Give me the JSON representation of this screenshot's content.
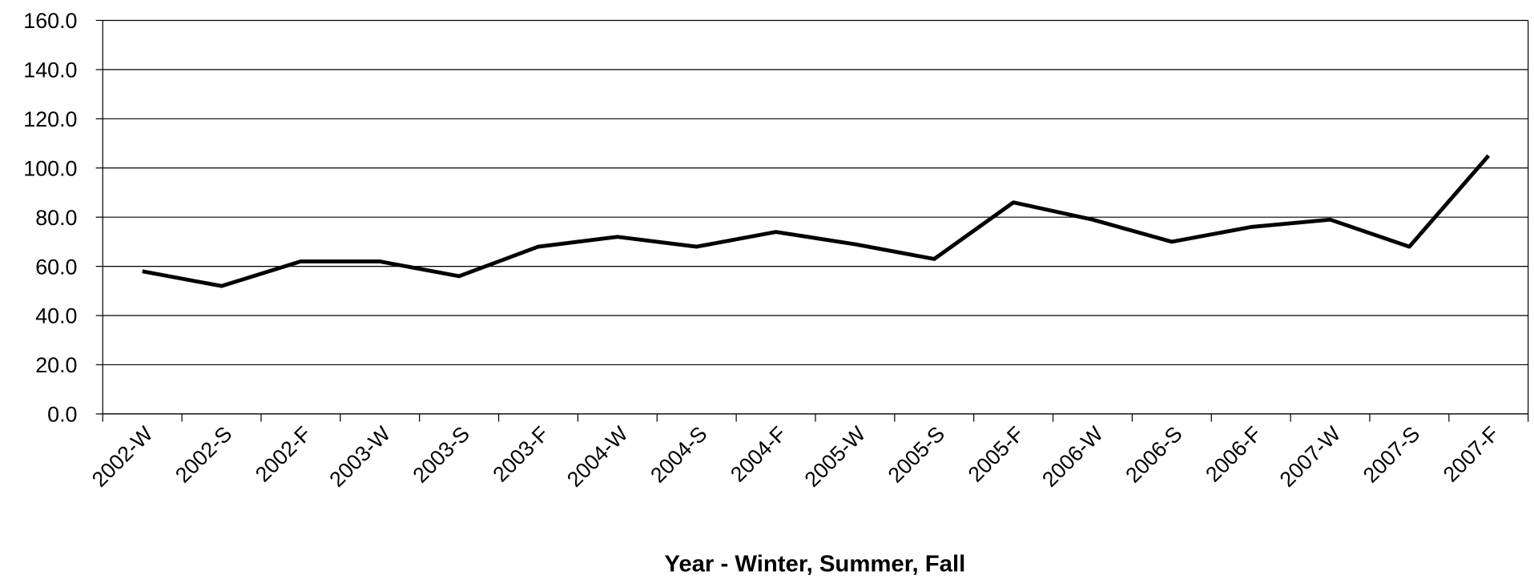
{
  "chart_data": {
    "type": "line",
    "x_label": "Year - Winter, Summer, Fall",
    "categories": [
      "2002-W",
      "2002-S",
      "2002-F",
      "2003-W",
      "2003-S",
      "2003-F",
      "2004-W",
      "2004-S",
      "2004-F",
      "2005-W",
      "2005-S",
      "2005-F",
      "2006-W",
      "2006-S",
      "2006-F",
      "2007-W",
      "2007-S",
      "2007-F"
    ],
    "values": [
      58,
      52,
      62,
      62,
      56,
      68,
      72,
      68,
      74,
      69,
      63,
      86,
      79,
      70,
      76,
      79,
      68,
      105
    ],
    "color": "#000000",
    "ylim": [
      0,
      160
    ],
    "yticks": [
      {
        "value": 0,
        "label": "0.0"
      },
      {
        "value": 20,
        "label": "20.0"
      },
      {
        "value": 40,
        "label": "40.0"
      },
      {
        "value": 60,
        "label": "60.0"
      },
      {
        "value": 80,
        "label": "80.0"
      },
      {
        "value": 100,
        "label": "100.0"
      },
      {
        "value": 120,
        "label": "120.0"
      },
      {
        "value": 140,
        "label": "140.0"
      },
      {
        "value": 160,
        "label": "160.0"
      }
    ],
    "grid": true
  }
}
